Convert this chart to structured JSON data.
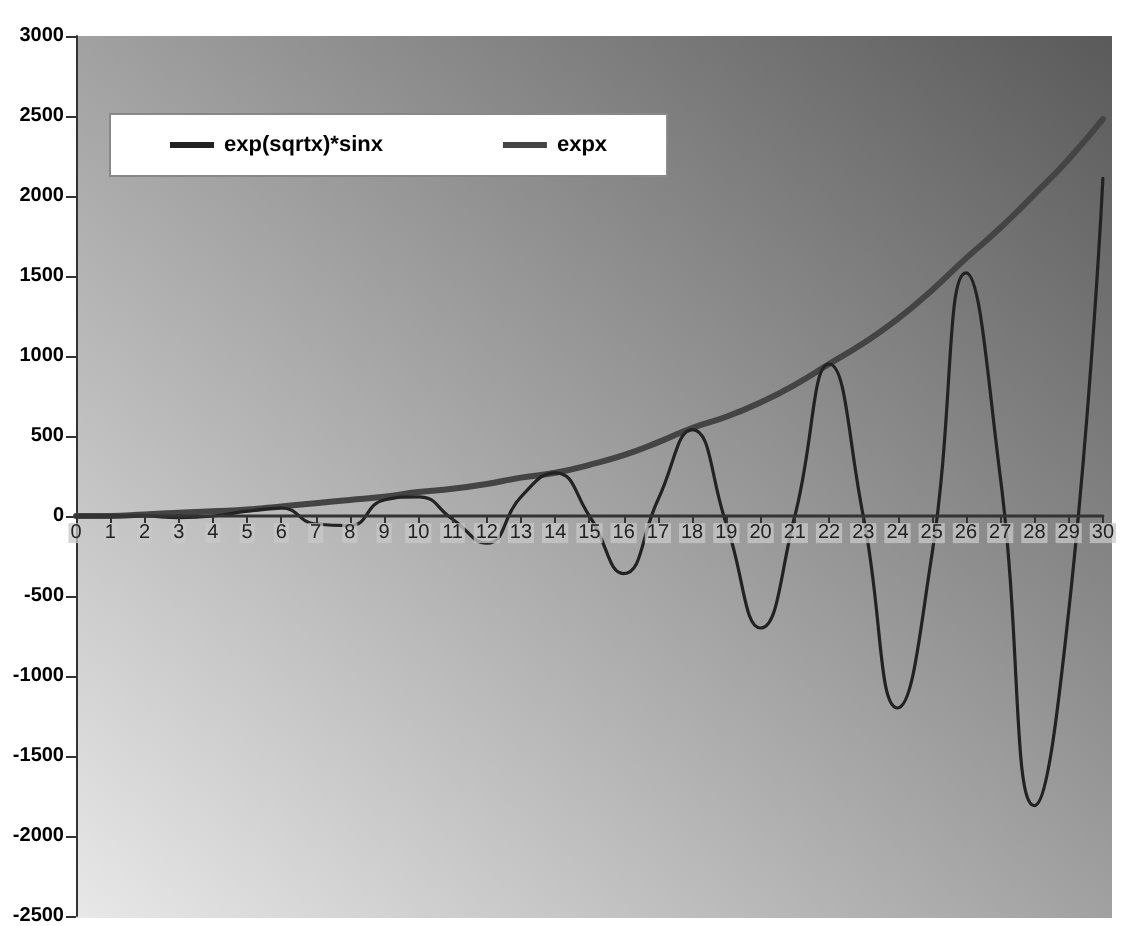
{
  "chart_data": {
    "type": "line",
    "x": [
      0,
      1,
      2,
      3,
      4,
      5,
      6,
      7,
      8,
      9,
      10,
      11,
      12,
      13,
      14,
      15,
      16,
      17,
      18,
      19,
      20,
      21,
      22,
      23,
      24,
      25,
      26,
      27,
      28,
      29,
      30
    ],
    "series": [
      {
        "name": "exp(sqrtx)*sinx",
        "color": "#222222",
        "values": [
          0,
          0,
          0,
          -10,
          0,
          30,
          50,
          -50,
          -60,
          100,
          120,
          -20,
          -170,
          120,
          270,
          0,
          -360,
          100,
          540,
          -50,
          -700,
          0,
          950,
          0,
          -1200,
          -250,
          1520,
          250,
          -1810,
          -600,
          2110
        ]
      },
      {
        "name": "expx",
        "color": "#444444",
        "values": [
          0,
          0,
          10,
          20,
          30,
          40,
          60,
          80,
          100,
          120,
          150,
          170,
          200,
          240,
          270,
          320,
          380,
          460,
          550,
          620,
          710,
          820,
          950,
          1080,
          1230,
          1410,
          1610,
          1800,
          2010,
          2230,
          2480
        ]
      }
    ],
    "xlim": [
      0,
      30
    ],
    "xticks": [
      0,
      1,
      2,
      3,
      4,
      5,
      6,
      7,
      8,
      9,
      10,
      11,
      12,
      13,
      14,
      15,
      16,
      17,
      18,
      19,
      20,
      21,
      22,
      23,
      24,
      25,
      26,
      27,
      28,
      29,
      30
    ],
    "ylim": [
      -2500,
      3000
    ],
    "yticks": [
      -2500,
      -2000,
      -1500,
      -1000,
      -500,
      0,
      500,
      1000,
      1500,
      2000,
      2500,
      3000
    ],
    "grid": false,
    "legend": "top left",
    "marker": "none",
    "line_style": "solid"
  }
}
